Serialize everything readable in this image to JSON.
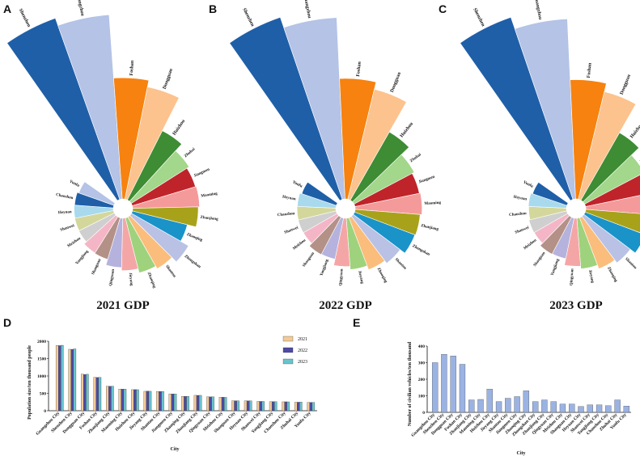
{
  "colors": {
    "roseColors": [
      "#1f5fa8",
      "#b4c3e6",
      "#f7820f",
      "#fcc38e",
      "#3e8c34",
      "#a3d78b",
      "#c0242b",
      "#f49a9a",
      "#a8a21b",
      "#1a93c9",
      "#b9c1e4",
      "#fbbd7b",
      "#9fd27c",
      "#f4a6a6",
      "#b5b3dd",
      "#b39187",
      "#f4b6c6",
      "#cfcfcf",
      "#d3d79b",
      "#a9d9ec"
    ],
    "bar2021": "#f3cb97",
    "bar2022": "#4f4aa3",
    "bar2023": "#67c4cd",
    "barE": "#9bb3e3"
  },
  "panels": {
    "a": "A",
    "b": "B",
    "c": "C",
    "d": "D",
    "e": "E"
  },
  "chart_data": [
    {
      "type": "rose",
      "title": "2021 GDP",
      "categories": [
        "Shenzhen",
        "Guangzhou",
        "Foshan",
        "Dongguan",
        "Huizhou",
        "Zhuhai",
        "Jiangmen",
        "Maoming",
        "Zhanjiang",
        "Zhaoqing",
        "Zhongshan",
        "Shantou",
        "Zhaoqing",
        "Jieyang",
        "Qingyuan",
        "Shaoguan",
        "Yangjiang",
        "Meizhou",
        "Shanwei",
        "Heyuan",
        "Chaozhou",
        "Yunfu"
      ],
      "values": [
        30665,
        28232,
        12157,
        10855,
        4977,
        3882,
        3601,
        3698,
        3560,
        2650,
        3566,
        2929,
        2650,
        2265,
        2007,
        1553,
        1516,
        1308,
        1288,
        1274,
        1245,
        1139
      ]
    },
    {
      "type": "rose",
      "title": "2022 GDP",
      "categories": [
        "Shenzhen",
        "Guangzhou",
        "Foshan",
        "Dongguan",
        "Huizhou",
        "Zhuhai",
        "Jiangmen",
        "Maoming",
        "Zhanjiang",
        "Zhongshan",
        "Shantou",
        "Zhaoqing",
        "Jieyang",
        "Qingyuan",
        "Yangjiang",
        "Shaoguan",
        "Meizhou",
        "Shanwei",
        "Chaozhou",
        "Heyuan",
        "Yunfu"
      ],
      "values": [
        32387,
        28839,
        12698,
        11200,
        5401,
        4045,
        3773,
        3905,
        3712,
        3631,
        3017,
        2705,
        2319,
        2032,
        1535,
        1564,
        1318,
        1323,
        1313,
        1294,
        1162
      ]
    },
    {
      "type": "rose",
      "title": "2023 GDP",
      "categories": [
        "Shenzhen",
        "Guangzhou",
        "Foshan",
        "Dongguan",
        "Huizhou",
        "Zhuhai",
        "Jiangmen",
        "Maoming",
        "Zhanjiang",
        "Zhongshan",
        "Shantou",
        "Zhaoqing",
        "Jieyang",
        "Qingyuan",
        "Yangjiang",
        "Shaoguan",
        "Meizhou",
        "Shanwei",
        "Chaozhou",
        "Heyuan",
        "Yunfu"
      ],
      "values": [
        34606,
        30355,
        13276,
        11438,
        5640,
        4233,
        3952,
        3974,
        3793,
        3850,
        3158,
        2793,
        2400,
        2152,
        1601,
        1635,
        1387,
        1403,
        1325,
        1348,
        1225
      ]
    },
    {
      "type": "bar",
      "ylabel": "Population size/ten thousand people",
      "xlabel": "City",
      "ylim": [
        0,
        2000
      ],
      "yticks": [
        "0",
        "500",
        "1000",
        "1500",
        "2000"
      ],
      "categories": [
        "Guangzhou City",
        "Shenzhen City",
        "Dongguan City",
        "Foshan City",
        "Zhanjiang City",
        "Maoming City",
        "Huizhou City",
        "Jieyang City",
        "Shantou City",
        "Jiangmen City",
        "Zhaoqing City",
        "Zhanjiang City",
        "Qingyuan City",
        "Meizhou City",
        "Shaoguan City",
        "Heyuan City",
        "Shanwei City",
        "Yangjiang City",
        "Chaozhou City",
        "Zhuhai City",
        "Yunfu City"
      ],
      "series": [
        {
          "name": "2021",
          "values": [
            1881,
            1768,
            1054,
            961,
            703,
            621,
            606,
            559,
            552,
            483,
            413,
            443,
            399,
            388,
            286,
            284,
            268,
            261,
            257,
            245,
            239
          ]
        },
        {
          "name": "2022",
          "values": [
            1873,
            1766,
            1044,
            956,
            703,
            621,
            607,
            562,
            554,
            482,
            413,
            442,
            398,
            387,
            287,
            283,
            268,
            261,
            257,
            245,
            239
          ]
        },
        {
          "name": "2023",
          "values": [
            1883,
            1779,
            1049,
            958,
            705,
            622,
            606,
            560,
            554,
            482,
            414,
            443,
            399,
            385,
            286,
            283,
            268,
            260,
            256,
            249,
            239
          ]
        }
      ]
    },
    {
      "type": "bar",
      "ylabel": "Number of civilian vehicles/ten thousand",
      "xlabel": "City",
      "ylim": [
        0,
        400
      ],
      "yticks": [
        "0",
        "100",
        "200",
        "300",
        "400"
      ],
      "categories": [
        "Guangzhou City",
        "Shenzhen City",
        "Dongguan City",
        "Foshan City",
        "Zhanjiang City",
        "Maoming City",
        "Huizhou City",
        "Jieyang City",
        "Shantou City",
        "Jiangmen City",
        "Zhaoqing City",
        "Zhongshan City",
        "Zhanjiang City",
        "Qingyuan City",
        "Meizhou City",
        "Shaoguan City",
        "Heyuan City",
        "Shanwei City",
        "Yangjiang City",
        "Chaozhou City",
        "Zhuhai City",
        "Yunfu City"
      ],
      "values": [
        300,
        350,
        340,
        290,
        75,
        78,
        140,
        65,
        85,
        95,
        130,
        65,
        75,
        65,
        50,
        50,
        35,
        45,
        45,
        40,
        75,
        38
      ]
    }
  ]
}
